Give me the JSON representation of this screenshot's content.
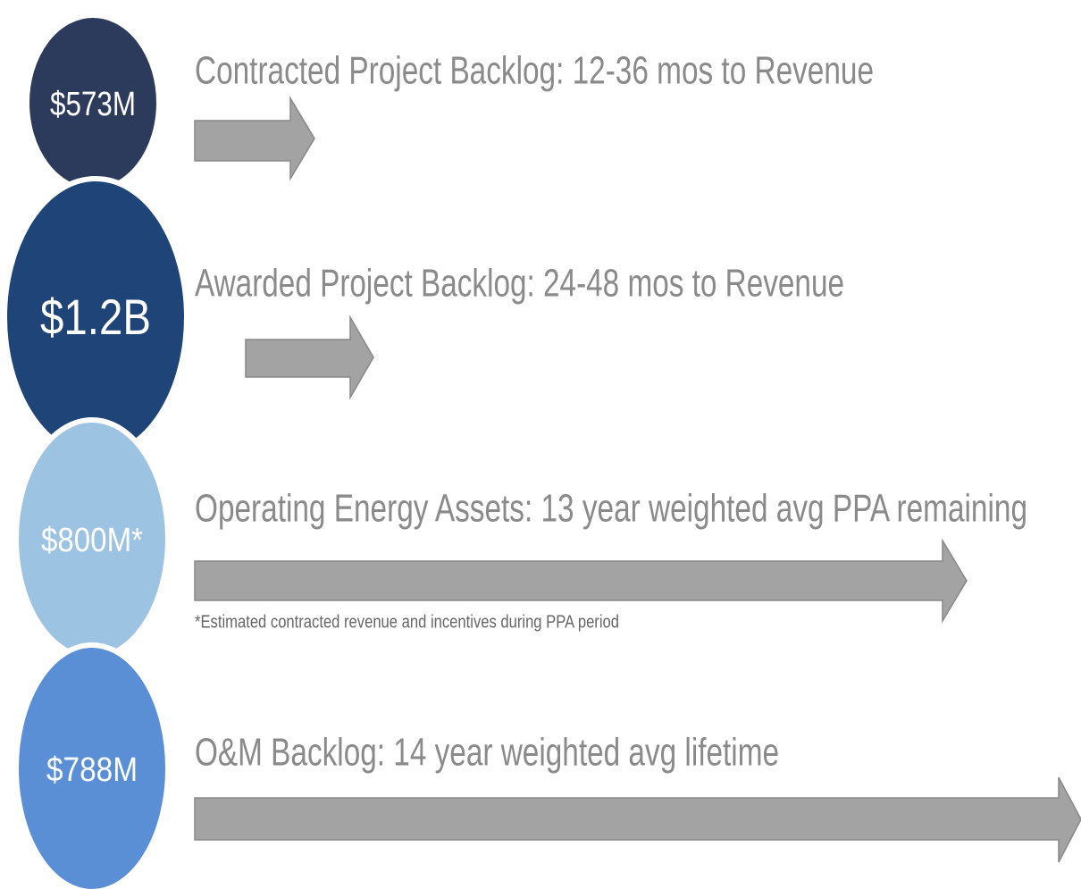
{
  "items": [
    {
      "amount": "$573M",
      "description": "Contracted Project Backlog: 12-36 mos to Revenue",
      "color": "#2c3b5c"
    },
    {
      "amount": "$1.2B",
      "description": "Awarded Project Backlog: 24-48 mos to Revenue",
      "color": "#1f4578"
    },
    {
      "amount": "$800M*",
      "description": "Operating Energy Assets: 13 year weighted avg PPA remaining",
      "note": "*Estimated contracted revenue and incentives during PPA period",
      "color": "#9dc3e3"
    },
    {
      "amount": "$788M",
      "description": "O&M Backlog: 14 year weighted avg lifetime",
      "color": "#5a8fd6"
    }
  ]
}
